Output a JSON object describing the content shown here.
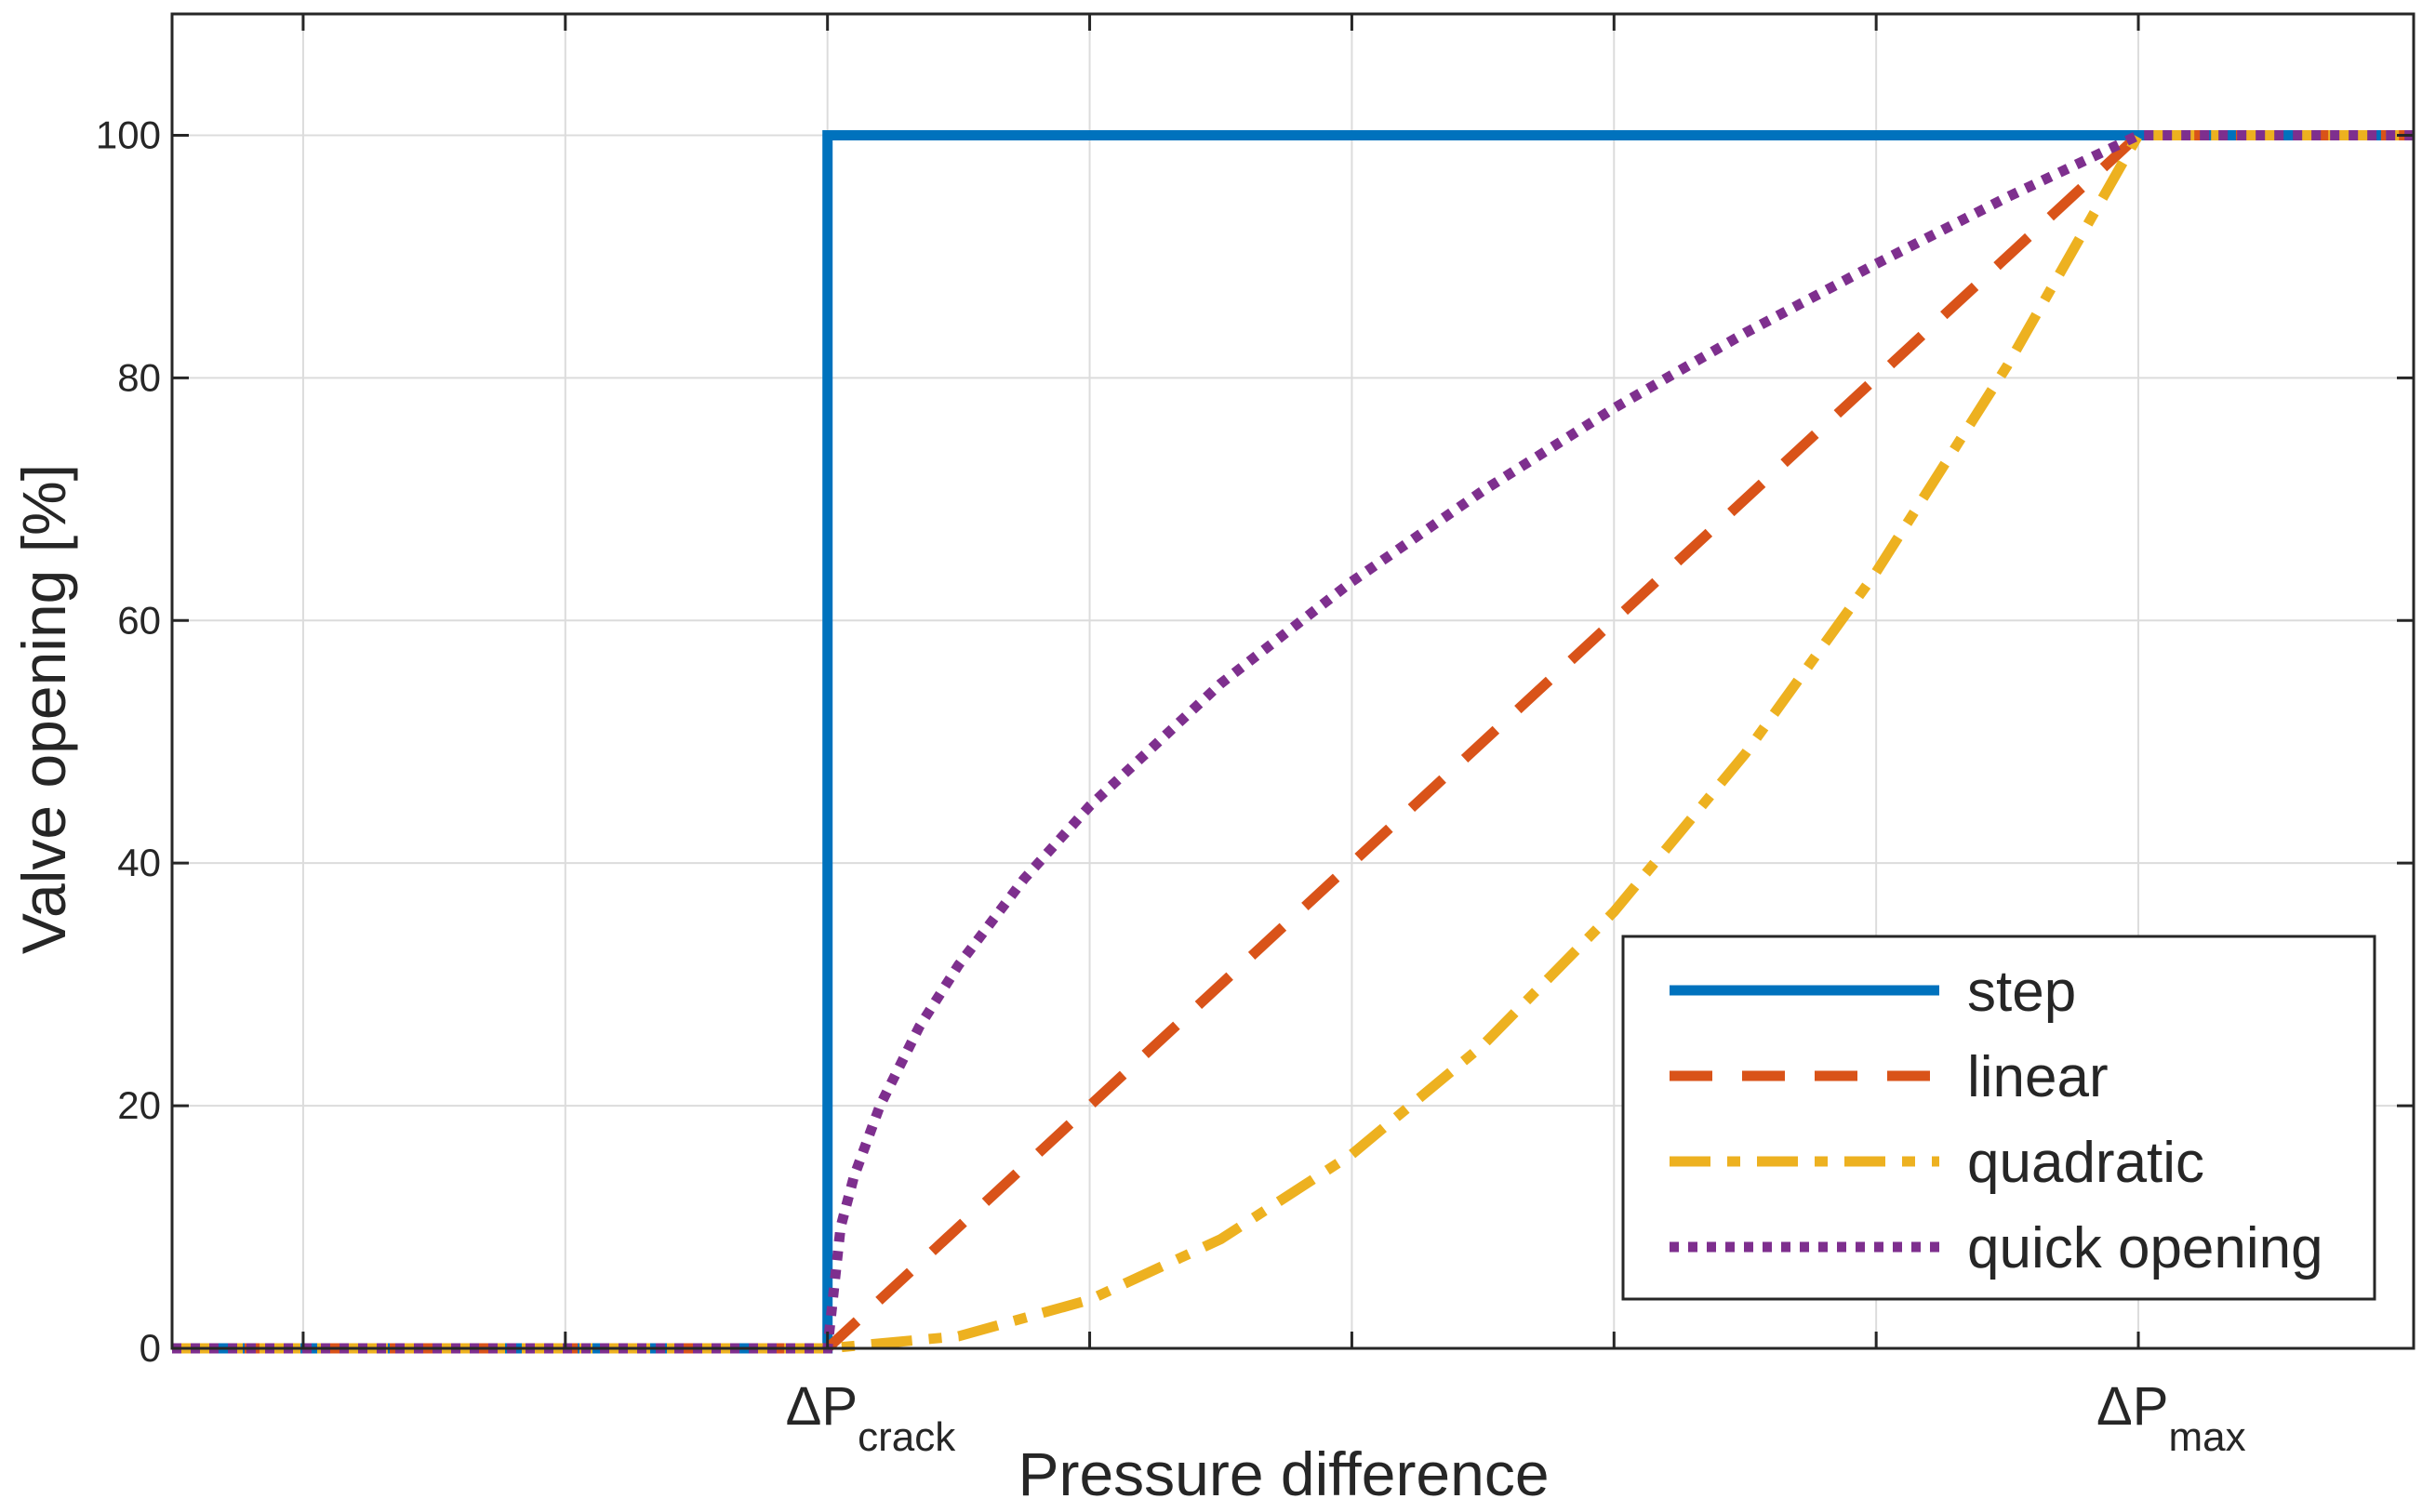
{
  "chart_data": {
    "type": "line",
    "title": "",
    "xlabel": "Pressure difference",
    "ylabel": "Valve opening [%]",
    "xlim": [
      -0.5,
      8.05
    ],
    "ylim": [
      0,
      110
    ],
    "grid": true,
    "yticks": [
      0,
      20,
      40,
      60,
      80,
      100
    ],
    "ytick_labels": [
      "0",
      "20",
      "40",
      "60",
      "80",
      "100"
    ],
    "xgrid": [
      0,
      1,
      2,
      3,
      4,
      5,
      6,
      7
    ],
    "xticks_labeled": [
      {
        "x": 2,
        "main": "ΔP",
        "sub": "crack"
      },
      {
        "x": 7,
        "main": "ΔP",
        "sub": "max"
      }
    ],
    "crack": 2,
    "max": 7,
    "legend_position": "bottom-right",
    "series": [
      {
        "name": "step",
        "color": "#0072BD",
        "style": "solid",
        "x": [
          -0.5,
          2,
          2,
          8.05
        ],
        "y": [
          0,
          0,
          100,
          100
        ]
      },
      {
        "name": "linear",
        "color": "#D95319",
        "style": "dashed",
        "x": [
          -0.5,
          2,
          7,
          8.05
        ],
        "y": [
          0,
          0,
          100,
          100
        ]
      },
      {
        "name": "quadratic",
        "color": "#EDB120",
        "style": "dashdot",
        "x": [
          -0.5,
          2,
          2.5,
          3,
          3.5,
          4,
          4.5,
          5,
          5.5,
          6,
          6.5,
          7,
          8.05
        ],
        "y": [
          0,
          0,
          1,
          4,
          9,
          16,
          25,
          36,
          49,
          64,
          81,
          100,
          100
        ]
      },
      {
        "name": "quick opening",
        "color": "#7E2F8E",
        "style": "dotted",
        "x": [
          -0.5,
          2,
          2.05,
          2.1,
          2.2,
          2.35,
          2.5,
          2.75,
          3,
          3.5,
          4,
          4.5,
          5,
          5.5,
          6,
          6.5,
          7,
          8.05
        ],
        "y": [
          0,
          0,
          10,
          14.1,
          20,
          26.5,
          31.6,
          38.7,
          44.7,
          54.8,
          63.2,
          70.7,
          77.5,
          83.7,
          89.4,
          94.9,
          100,
          100
        ]
      }
    ]
  }
}
